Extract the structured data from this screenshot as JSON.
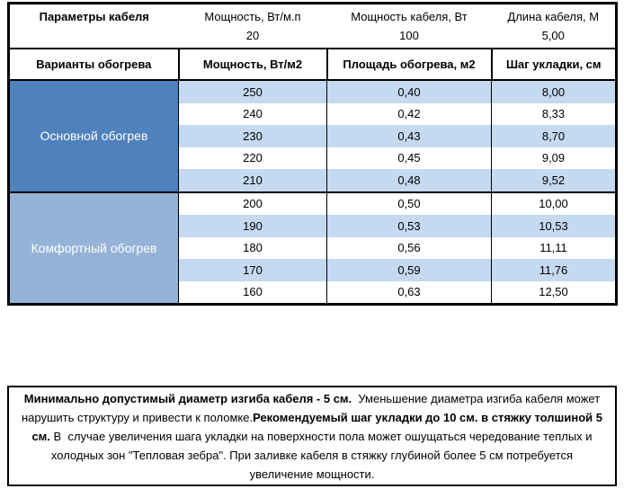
{
  "colors": {
    "main_heating_fill": "#4F81BD",
    "comfort_heating_fill": "#95B3D7",
    "band_row_fill": "#C5D9F1",
    "plain_row_fill": "#FFFFFF",
    "border": "#000000",
    "group_label_text": "#FFFFFF"
  },
  "cable_params": {
    "title": "Параметры кабеля",
    "params": [
      {
        "label": "Мощность, Вт/м.п",
        "value": "20"
      },
      {
        "label": "Мощность кабеля, Вт",
        "value": "100"
      },
      {
        "label": "Длина кабеля, М",
        "value": "5,00"
      }
    ]
  },
  "table": {
    "headers": [
      "Варианты обогрева",
      "Мощность, Вт/м2",
      "Площадь обогрева, м2",
      "Шаг укладки, см"
    ],
    "groups": [
      {
        "name": "Основной обогрев",
        "rows": [
          [
            "250",
            "0,40",
            "8,00"
          ],
          [
            "240",
            "0,42",
            "8,33"
          ],
          [
            "230",
            "0,43",
            "8,70"
          ],
          [
            "220",
            "0,45",
            "9,09"
          ],
          [
            "210",
            "0,48",
            "9,52"
          ]
        ]
      },
      {
        "name": "Комфортный обогрев",
        "rows": [
          [
            "200",
            "0,50",
            "10,00"
          ],
          [
            "190",
            "0,53",
            "10,53"
          ],
          [
            "180",
            "0,56",
            "11,11"
          ],
          [
            "170",
            "0,59",
            "11,76"
          ],
          [
            "160",
            "0,63",
            "12,50"
          ]
        ]
      }
    ]
  },
  "note": {
    "segments": [
      {
        "bold": true,
        "text": "Минимально допустимый диаметр изгиба кабеля - 5 см."
      },
      {
        "bold": false,
        "text": "  Уменьшение диаметра изгиба кабеля может нарушить структуру и привести к поломке."
      },
      {
        "bold": true,
        "text": "Рекомендуемый шаг укладки до 10 см. в стяжку толшиной 5 см."
      },
      {
        "bold": false,
        "text": " В  случае увеличения шага укладки на поверхности пола может ошущаться чередование теплых и холодных зон \"Тепловая зебра\". При заливке кабеля в стяжку глубиной более 5 см потребуется увеличение мощности."
      }
    ]
  }
}
